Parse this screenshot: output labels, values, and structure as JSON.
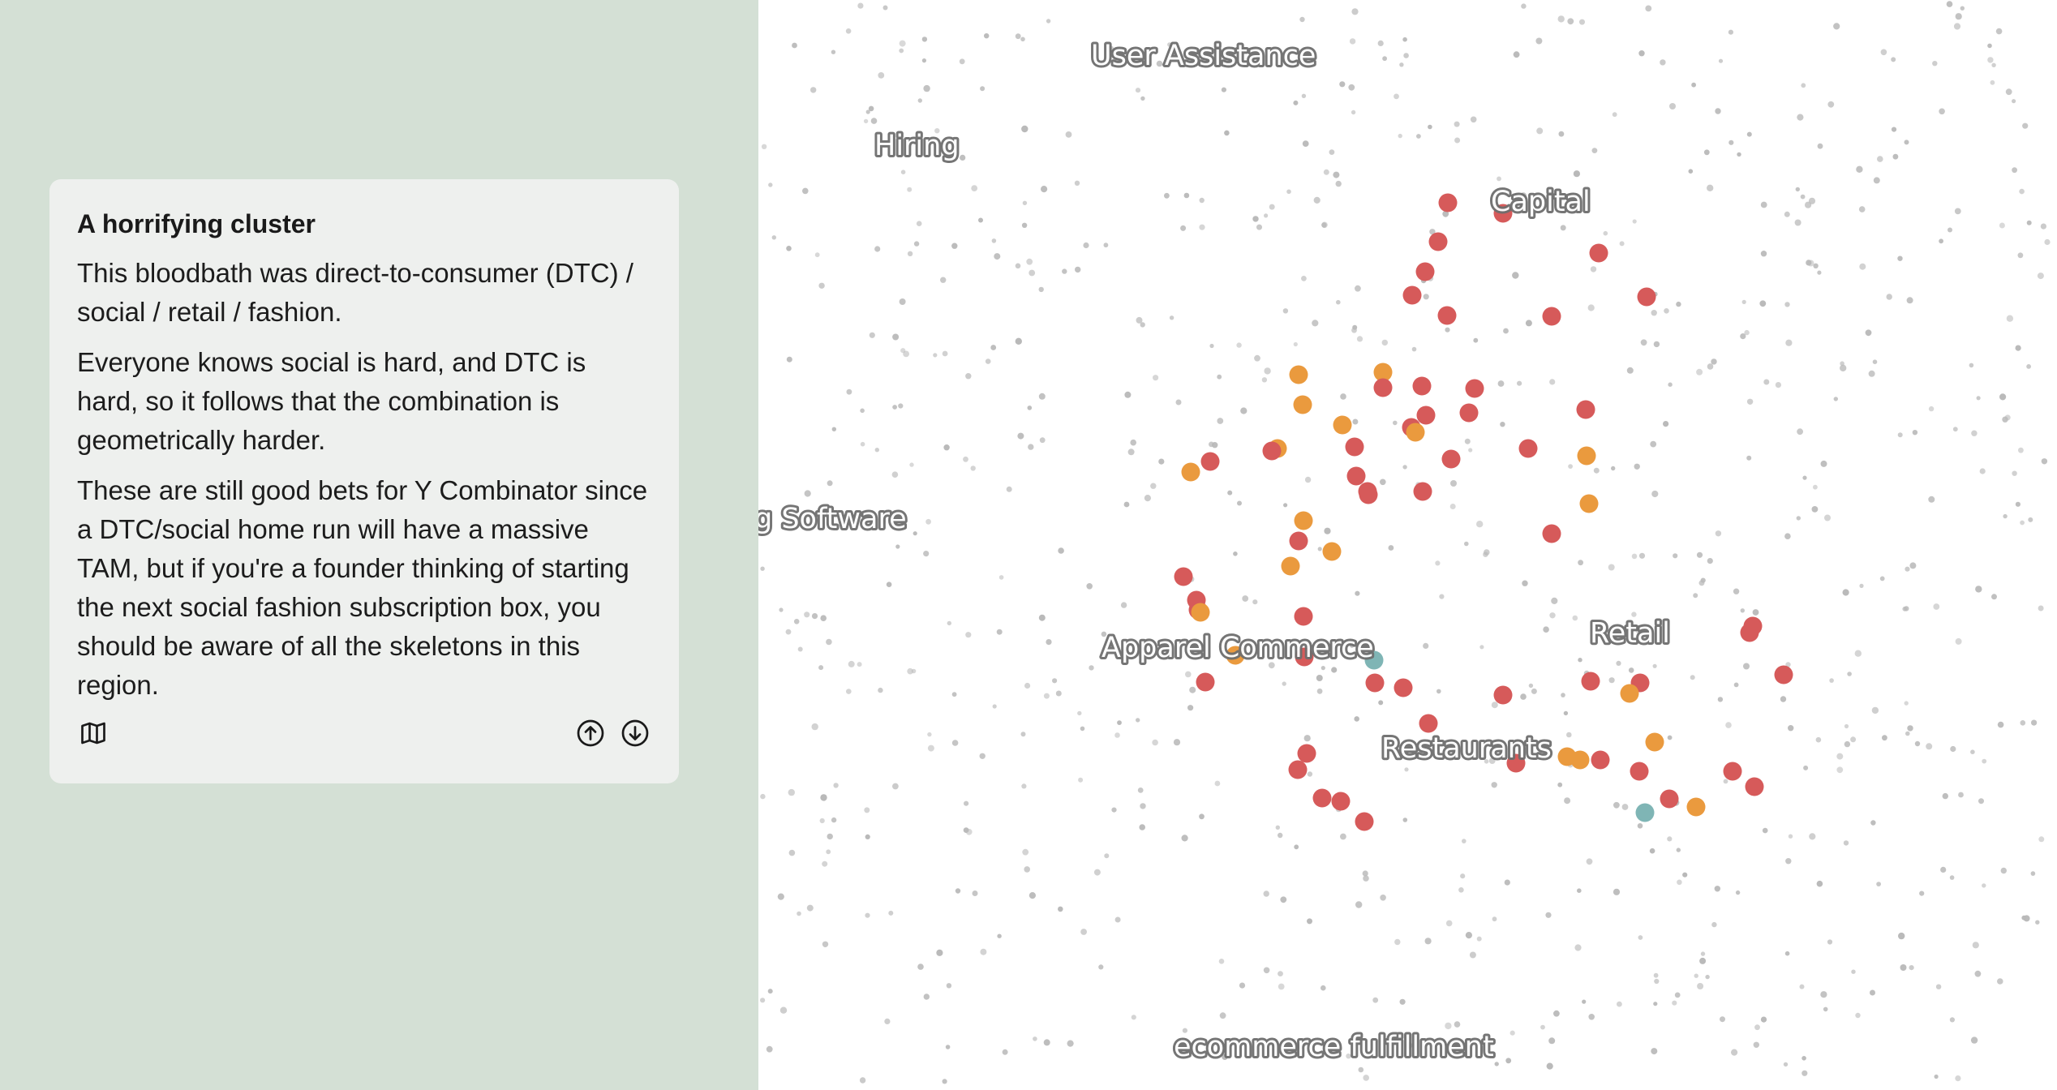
{
  "card": {
    "title": "A horrifying cluster",
    "paragraphs": [
      "This bloodbath was direct-to-consumer (DTC) / social / retail / fashion.",
      "Everyone knows social is hard, and DTC is hard, so it follows that the combination is geometrically harder.",
      "These are still good bets for Y Combinator since a DTC/social home run will have a massive TAM, but if you're a founder thinking of starting the next social fashion subscription box, you should be aware of all the skeletons in this region."
    ],
    "icons": {
      "map": "map-icon",
      "up": "arrow-up-circle-icon",
      "down": "arrow-down-circle-icon"
    }
  },
  "map": {
    "labels": [
      "User Assistance",
      "Hiring",
      "Capital",
      "g Software",
      "Apparel Commerce",
      "Retail",
      "Restaurants",
      "ecommerce fulfillment"
    ],
    "colors": {
      "background_dot": "#b9b9b9",
      "red": "#d65a5a",
      "orange": "#ea9a3e",
      "teal": "#7fb5b5"
    }
  }
}
